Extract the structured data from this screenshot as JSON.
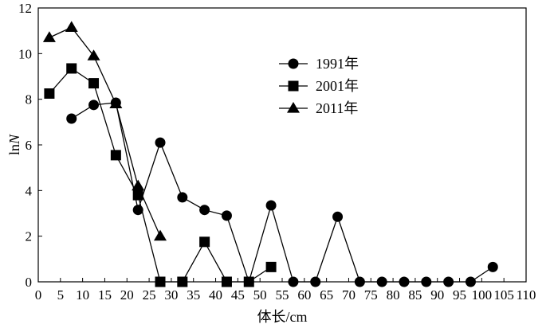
{
  "chart_data": {
    "type": "line",
    "title": "",
    "xlabel": "体长/cm",
    "ylabel_prefix": "ln",
    "ylabel_var": "N",
    "xlim": [
      0,
      110
    ],
    "ylim": [
      0,
      12
    ],
    "x_ticks": [
      0,
      5,
      10,
      15,
      20,
      25,
      30,
      35,
      40,
      45,
      50,
      55,
      60,
      65,
      70,
      75,
      80,
      85,
      90,
      95,
      100,
      105,
      110
    ],
    "y_ticks": [
      0,
      2,
      4,
      6,
      8,
      10,
      12
    ],
    "grid": false,
    "legend_position": "top-center",
    "series": [
      {
        "name": "1991年",
        "marker": "circle",
        "points": [
          [
            7.5,
            7.15
          ],
          [
            12.5,
            7.75
          ],
          [
            17.5,
            7.85
          ],
          [
            22.5,
            3.15
          ],
          [
            27.5,
            6.1
          ],
          [
            32.5,
            3.7
          ],
          [
            37.5,
            3.15
          ],
          [
            42.5,
            2.9
          ],
          [
            47.5,
            0
          ],
          [
            52.5,
            3.35
          ],
          [
            57.5,
            0
          ],
          [
            62.5,
            0
          ],
          [
            67.5,
            2.85
          ],
          [
            72.5,
            0
          ],
          [
            77.5,
            0
          ],
          [
            82.5,
            0
          ],
          [
            87.5,
            0
          ],
          [
            92.5,
            0
          ],
          [
            97.5,
            0
          ],
          [
            102.5,
            0.65
          ]
        ]
      },
      {
        "name": "2001年",
        "marker": "square",
        "segments": [
          [
            [
              2.5,
              8.25
            ],
            [
              7.5,
              9.35
            ],
            [
              12.5,
              8.7
            ],
            [
              17.5,
              5.55
            ],
            [
              22.5,
              3.8
            ],
            [
              27.5,
              0
            ],
            [
              32.5,
              0
            ],
            [
              37.5,
              1.75
            ],
            [
              42.5,
              0
            ],
            [
              47.5,
              0
            ],
            [
              52.5,
              0.65
            ]
          ]
        ]
      },
      {
        "name": "2011年",
        "marker": "triangle",
        "points": [
          [
            2.5,
            10.7
          ],
          [
            7.5,
            11.15
          ],
          [
            12.5,
            9.9
          ],
          [
            17.5,
            7.8
          ],
          [
            22.5,
            4.2
          ],
          [
            27.5,
            2.0
          ]
        ]
      }
    ]
  }
}
